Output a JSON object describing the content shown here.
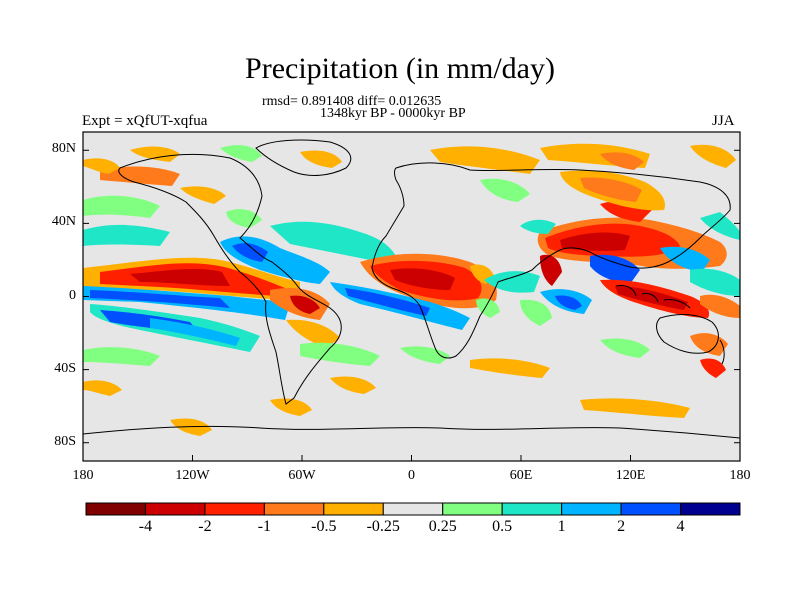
{
  "title": "Precipitation (in mm/day)",
  "stats": "rmsd= 0.891408 diff= 0.012635",
  "period": "1348kyr BP - 0000kyr BP",
  "experiment": "Expt = xQfUT-xqfua",
  "season": "JJA",
  "y_axis": {
    "ticks": [
      {
        "label": "80N",
        "value": 80
      },
      {
        "label": "40N",
        "value": 40
      },
      {
        "label": "0",
        "value": 0
      },
      {
        "label": "40S",
        "value": -40
      },
      {
        "label": "80S",
        "value": -80
      }
    ],
    "range": [
      -90,
      90
    ]
  },
  "x_axis": {
    "ticks": [
      {
        "label": "180",
        "value": -180
      },
      {
        "label": "120W",
        "value": -120
      },
      {
        "label": "60W",
        "value": -60
      },
      {
        "label": "0",
        "value": 0
      },
      {
        "label": "60E",
        "value": 60
      },
      {
        "label": "120E",
        "value": 120
      },
      {
        "label": "180",
        "value": 180
      }
    ],
    "range": [
      -180,
      180
    ]
  },
  "colorbar": {
    "colors": [
      "#800000",
      "#cc0000",
      "#ff2000",
      "#ff7a1a",
      "#ffb000",
      "#e6e6e6",
      "#80ff80",
      "#20e6c8",
      "#00b4ff",
      "#0050ff",
      "#000090"
    ],
    "labels": [
      "-4",
      "-2",
      "-1",
      "-0.5",
      "-0.25",
      "0.25",
      "0.5",
      "1",
      "2",
      "4"
    ],
    "levels": [
      -4,
      -2,
      -1,
      -0.5,
      -0.25,
      0.25,
      0.5,
      1,
      2,
      4
    ]
  },
  "colors": {
    "background_field": "#e6e6e6",
    "coastline": "#000000"
  }
}
